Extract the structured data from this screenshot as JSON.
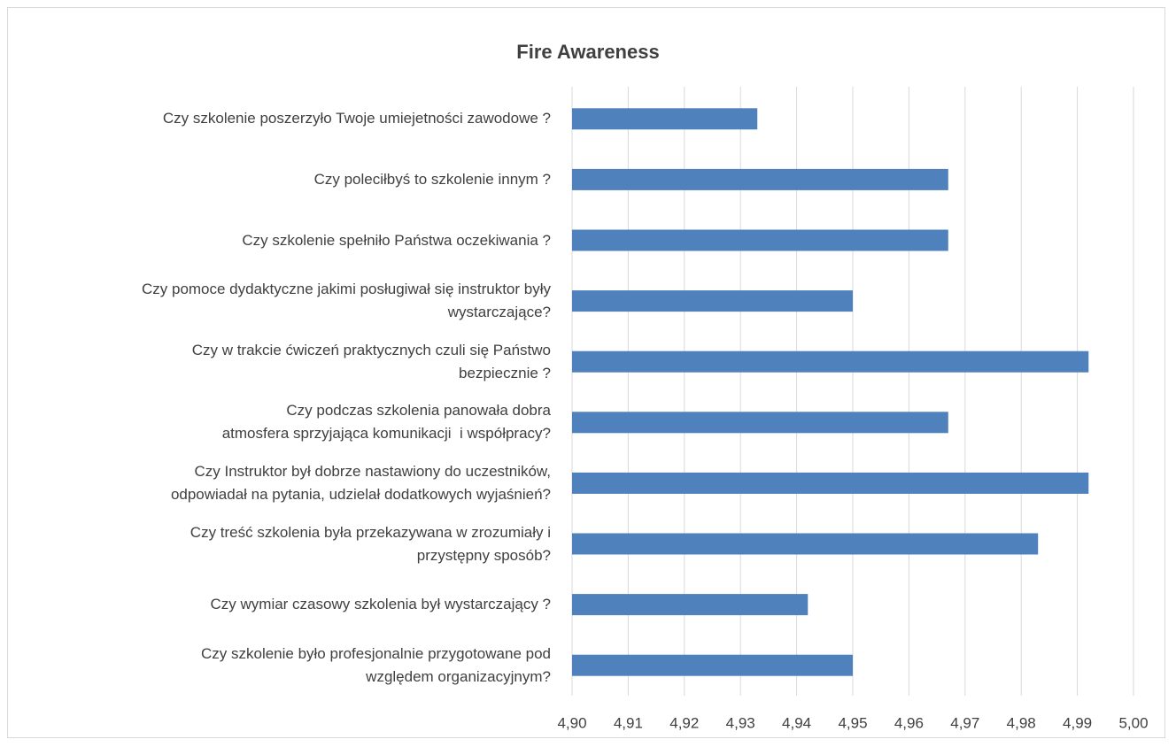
{
  "chart_data": {
    "type": "hbar",
    "title": "Fire Awareness",
    "categories": [
      "Czy szkolenie poszerzyło Twoje umiejetności zawodowe ?",
      "Czy poleciłbyś to szkolenie innym ?",
      "Czy szkolenie spełniło Państwa oczekiwania ?",
      "Czy pomoce dydaktyczne jakimi posługiwał się instruktor były\nwystarczające?",
      "Czy w trakcie ćwiczeń praktycznych czuli się Państwo\nbezpiecznie ?",
      "Czy podczas szkolenia panowała dobra\natmosfera sprzyjająca komunikacji  i współpracy?",
      "Czy Instruktor był dobrze nastawiony do uczestników,\nodpowiadał na pytania, udzielał dodatkowych wyjaśnień?",
      "Czy treść szkolenia była przekazywana w zrozumiały i\nprzystępny sposób?",
      "Czy wymiar czasowy szkolenia był wystarczający ?",
      "Czy szkolenie było profesjonalnie przygotowane pod\nwzględem organizacyjnym?"
    ],
    "values": [
      4.933,
      4.967,
      4.967,
      4.95,
      4.992,
      4.967,
      4.992,
      4.983,
      4.942,
      4.95
    ],
    "color": "#4f81bd",
    "xlim": [
      4.9,
      5.0
    ],
    "xticks": [
      {
        "value": 4.9,
        "label": "4,90"
      },
      {
        "value": 4.91,
        "label": "4,91"
      },
      {
        "value": 4.92,
        "label": "4,92"
      },
      {
        "value": 4.93,
        "label": "4,93"
      },
      {
        "value": 4.94,
        "label": "4,94"
      },
      {
        "value": 4.95,
        "label": "4,95"
      },
      {
        "value": 4.96,
        "label": "4,96"
      },
      {
        "value": 4.97,
        "label": "4,97"
      },
      {
        "value": 4.98,
        "label": "4,98"
      },
      {
        "value": 4.99,
        "label": "4,99"
      },
      {
        "value": 5.0,
        "label": "5,00"
      }
    ],
    "grid": true
  }
}
